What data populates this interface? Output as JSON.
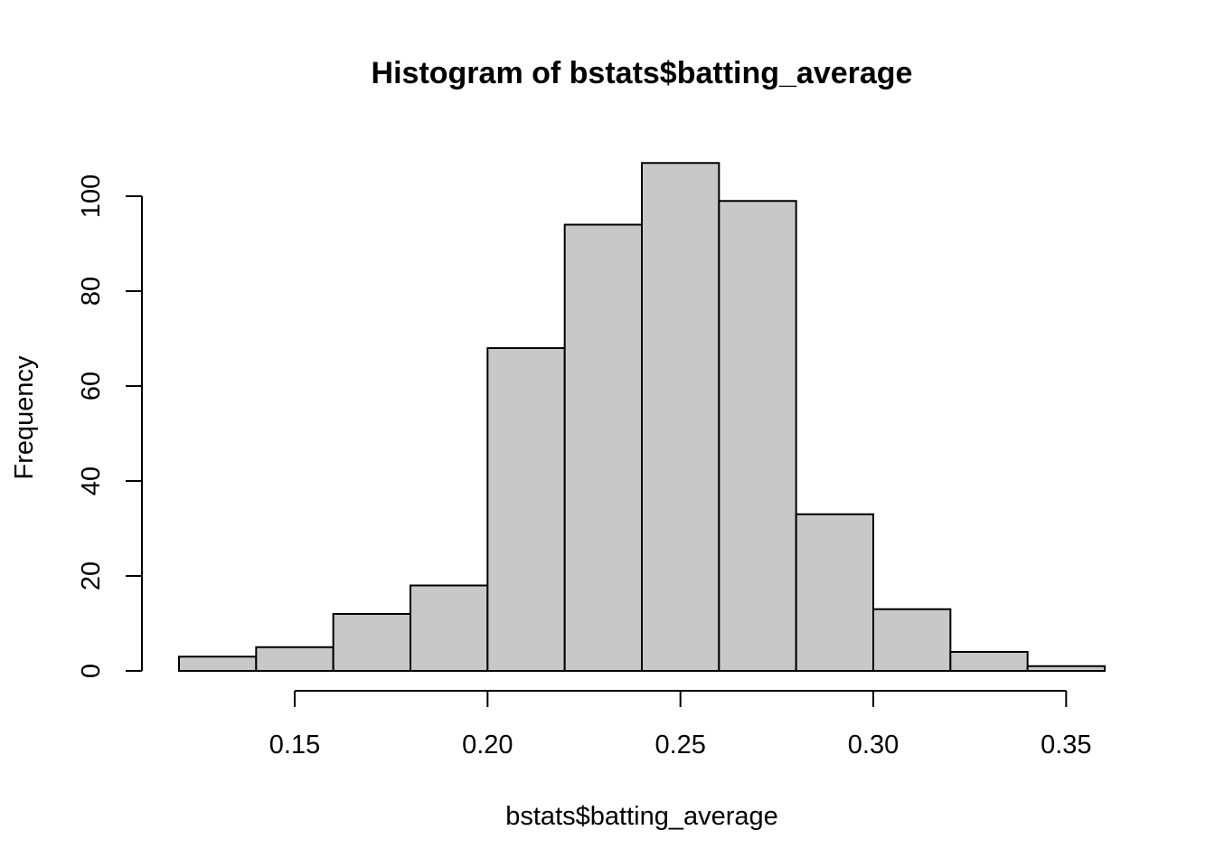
{
  "chart_data": {
    "type": "bar",
    "title": "Histogram of bstats$batting_average",
    "xlabel": "bstats$batting_average",
    "ylabel": "Frequency",
    "bins": [
      {
        "x0": 0.12,
        "x1": 0.14,
        "count": 3
      },
      {
        "x0": 0.14,
        "x1": 0.16,
        "count": 5
      },
      {
        "x0": 0.16,
        "x1": 0.18,
        "count": 12
      },
      {
        "x0": 0.18,
        "x1": 0.2,
        "count": 18
      },
      {
        "x0": 0.2,
        "x1": 0.22,
        "count": 68
      },
      {
        "x0": 0.22,
        "x1": 0.24,
        "count": 94
      },
      {
        "x0": 0.24,
        "x1": 0.26,
        "count": 107
      },
      {
        "x0": 0.26,
        "x1": 0.28,
        "count": 99
      },
      {
        "x0": 0.28,
        "x1": 0.3,
        "count": 33
      },
      {
        "x0": 0.3,
        "x1": 0.32,
        "count": 13
      },
      {
        "x0": 0.32,
        "x1": 0.34,
        "count": 4
      },
      {
        "x0": 0.34,
        "x1": 0.36,
        "count": 1
      }
    ],
    "xticks": [
      0.15,
      0.2,
      0.25,
      0.3,
      0.35
    ],
    "xtick_labels": [
      "0.15",
      "0.20",
      "0.25",
      "0.30",
      "0.35"
    ],
    "yticks": [
      0,
      20,
      40,
      60,
      80,
      100
    ],
    "ytick_labels": [
      "0",
      "20",
      "40",
      "60",
      "80",
      "100"
    ],
    "xlim": [
      0.12,
      0.36
    ],
    "ylim": [
      0,
      107
    ],
    "grid": false,
    "bar_color": "#c8c8c8",
    "edge_color": "#000000"
  }
}
